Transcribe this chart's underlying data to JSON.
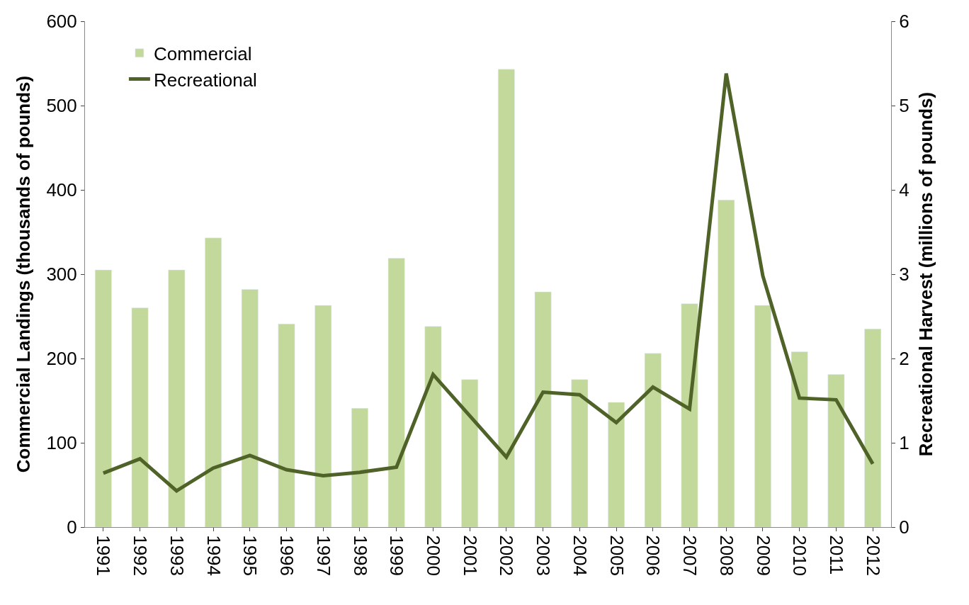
{
  "chart_data": {
    "type": "bar",
    "ylabel": "Commercial Landings (thousands of pounds)",
    "y2label": "Recreational Harvest (millions of pounds)",
    "categories": [
      "1991",
      "1992",
      "1993",
      "1994",
      "1995",
      "1996",
      "1997",
      "1998",
      "1999",
      "2000",
      "2001",
      "2002",
      "2003",
      "2004",
      "2005",
      "2006",
      "2007",
      "2008",
      "2009",
      "2010",
      "2011",
      "2012"
    ],
    "series": [
      {
        "name": "Commercial",
        "color": "#c3d89b",
        "values": [
          305,
          260,
          305,
          343,
          282,
          241,
          263,
          141,
          319,
          238,
          175,
          543,
          279,
          175,
          148,
          206,
          265,
          388,
          263,
          208,
          181,
          235
        ]
      },
      {
        "name": "Recreational",
        "type": "line",
        "axis": "y2",
        "color": "#4f6228",
        "values": [
          0.64,
          0.81,
          0.43,
          0.7,
          0.85,
          0.68,
          0.61,
          0.65,
          0.71,
          1.81,
          1.32,
          0.83,
          1.6,
          1.57,
          1.24,
          1.66,
          1.4,
          5.38,
          2.98,
          1.53,
          1.51,
          0.75
        ]
      }
    ],
    "ylim": [
      0,
      600
    ],
    "yticks": [
      0,
      100,
      200,
      300,
      400,
      500,
      600
    ],
    "y2lim": [
      0,
      6
    ],
    "y2ticks": [
      0,
      1,
      2,
      3,
      4,
      5,
      6
    ],
    "legend": "top left",
    "marker": "none",
    "line_style": "solid"
  }
}
